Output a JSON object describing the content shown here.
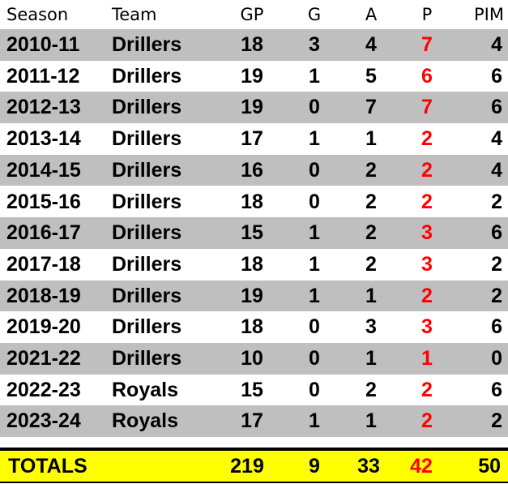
{
  "table": {
    "header": [
      "Season",
      "Team",
      "GP",
      "G",
      "A",
      "P",
      "PIM"
    ],
    "rows": [
      [
        "2010-11",
        "Drillers",
        18,
        3,
        4,
        7,
        4
      ],
      [
        "2011-12",
        "Drillers",
        19,
        1,
        5,
        6,
        6
      ],
      [
        "2012-13",
        "Drillers",
        19,
        0,
        7,
        7,
        6
      ],
      [
        "2013-14",
        "Drillers",
        17,
        1,
        1,
        2,
        4
      ],
      [
        "2014-15",
        "Drillers",
        16,
        0,
        2,
        2,
        4
      ],
      [
        "2015-16",
        "Drillers",
        18,
        0,
        2,
        2,
        2
      ],
      [
        "2016-17",
        "Drillers",
        15,
        1,
        2,
        3,
        6
      ],
      [
        "2017-18",
        "Drillers",
        18,
        1,
        2,
        3,
        2
      ],
      [
        "2018-19",
        "Drillers",
        19,
        1,
        1,
        2,
        2
      ],
      [
        "2019-20",
        "Drillers",
        18,
        0,
        3,
        3,
        6
      ],
      [
        "2021-22",
        "Drillers",
        10,
        0,
        1,
        1,
        0
      ],
      [
        "2022-23",
        "Royals",
        15,
        0,
        2,
        2,
        6
      ],
      [
        "2023-24",
        "Royals",
        17,
        1,
        1,
        2,
        2
      ]
    ],
    "totals": [
      "TOTALS",
      219,
      9,
      33,
      42,
      50
    ]
  }
}
